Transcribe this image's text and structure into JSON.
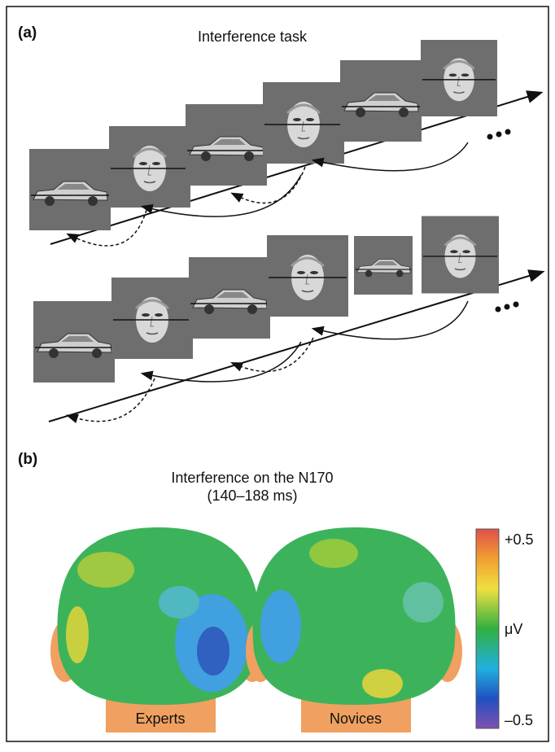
{
  "panel_a": {
    "label": "(a)",
    "title": "Interference task"
  },
  "panel_b": {
    "label": "(b)",
    "title_lines": [
      "Interference on the N170",
      "(140–188 ms)"
    ],
    "colorbar": {
      "top": "+0.5",
      "unit": "μV",
      "bottom": "–0.5"
    },
    "heads": [
      "Experts",
      "Novices"
    ]
  }
}
